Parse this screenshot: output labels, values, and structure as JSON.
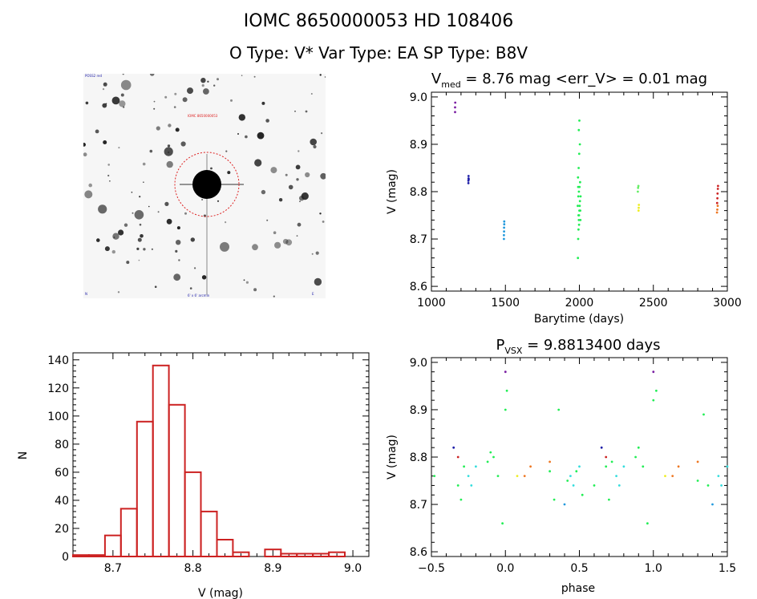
{
  "header": {
    "title": "IOMC 8650000053    HD 108406",
    "subtitle": "O Type: V*  Var Type: EA  SP Type: B8V"
  },
  "finder": {
    "label_center": "IOMC 8650000053",
    "label_top_left": "POSS2 red",
    "label_bottom_left": "N",
    "label_bottom_center": "6' x 6' arcmin",
    "label_bottom_right": "E"
  },
  "chart_data": [
    {
      "type": "scatter",
      "title_main": "V",
      "title_sub": "med",
      "title_rest": " = 8.76 mag <err_V> = 0.01 mag",
      "xlabel": "Barytime (days)",
      "ylabel": "V (mag)",
      "xlim": [
        1000,
        3000
      ],
      "ylim": [
        9.01,
        8.59
      ],
      "xticks": [
        "1000",
        "1500",
        "2000",
        "2500",
        "3000"
      ],
      "yticks": [
        "8.6",
        "8.7",
        "8.8",
        "8.9",
        "9.0"
      ],
      "series": [
        {
          "color": "#7a1fa2",
          "points": [
            [
              1160,
              8.968
            ],
            [
              1160,
              8.978
            ],
            [
              1161,
              8.988
            ]
          ]
        },
        {
          "color": "#1e1ea8",
          "points": [
            [
              1250,
              8.818
            ],
            [
              1250,
              8.823
            ],
            [
              1251,
              8.828
            ],
            [
              1251,
              8.833
            ],
            [
              1252,
              8.826
            ]
          ]
        },
        {
          "color": "#2299dd",
          "points": [
            [
              1490,
              8.7
            ],
            [
              1490,
              8.708
            ],
            [
              1491,
              8.716
            ],
            [
              1491,
              8.724
            ],
            [
              1492,
              8.731
            ],
            [
              1492,
              8.737
            ]
          ]
        },
        {
          "color": "#22ee55",
          "points": [
            [
              1990,
              8.66
            ],
            [
              1992,
              8.7
            ],
            [
              1994,
              8.72
            ],
            [
              1996,
              8.74
            ],
            [
              1998,
              8.75
            ],
            [
              2000,
              8.76
            ],
            [
              2002,
              8.77
            ],
            [
              2004,
              8.78
            ],
            [
              1993,
              8.79
            ],
            [
              1997,
              8.8
            ],
            [
              2001,
              8.81
            ],
            [
              2005,
              8.82
            ],
            [
              1991,
              8.83
            ],
            [
              1995,
              8.85
            ],
            [
              1999,
              8.88
            ],
            [
              2003,
              8.9
            ],
            [
              1996,
              8.93
            ],
            [
              2000,
              8.95
            ],
            [
              1994,
              8.75
            ],
            [
              1998,
              8.73
            ],
            [
              2006,
              8.76
            ],
            [
              1989,
              8.77
            ],
            [
              2008,
              8.79
            ],
            [
              1992,
              8.81
            ],
            [
              2007,
              8.74
            ]
          ]
        },
        {
          "color": "#eeee22",
          "points": [
            [
              2400,
              8.76
            ],
            [
              2401,
              8.766
            ],
            [
              2402,
              8.772
            ]
          ]
        },
        {
          "color": "#66ee66",
          "points": [
            [
              2395,
              8.8
            ],
            [
              2397,
              8.808
            ],
            [
              2399,
              8.812
            ]
          ]
        },
        {
          "color": "#ee7722",
          "points": [
            [
              2930,
              8.756
            ],
            [
              2932,
              8.762
            ],
            [
              2935,
              8.77
            ]
          ]
        },
        {
          "color": "#cc2222",
          "points": [
            [
              2931,
              8.776
            ],
            [
              2933,
              8.786
            ],
            [
              2934,
              8.796
            ],
            [
              2936,
              8.806
            ],
            [
              2937,
              8.812
            ]
          ]
        }
      ]
    },
    {
      "type": "bar",
      "xlabel": "V (mag)",
      "ylabel": "N",
      "xlim": [
        8.65,
        9.02
      ],
      "ylim": [
        0,
        145
      ],
      "xticks": [
        "8.7",
        "8.8",
        "8.9",
        "9.0"
      ],
      "yticks": [
        "0",
        "20",
        "40",
        "60",
        "80",
        "100",
        "120",
        "140"
      ],
      "bin_width": 0.02,
      "bins": [
        8.66,
        8.68,
        8.7,
        8.72,
        8.74,
        8.76,
        8.78,
        8.8,
        8.82,
        8.84,
        8.86,
        8.88,
        8.9,
        8.92,
        8.94,
        8.96,
        8.98
      ],
      "values": [
        1,
        1,
        15,
        34,
        96,
        136,
        108,
        60,
        32,
        12,
        3,
        0,
        5,
        2,
        2,
        2,
        3
      ],
      "color": "#cc2222"
    },
    {
      "type": "scatter",
      "title_main": "P",
      "title_sub": "VSX",
      "title_rest": " = 9.8813400 days",
      "xlabel": "phase",
      "ylabel": "V (mag)",
      "xlim": [
        -0.5,
        1.5
      ],
      "ylim": [
        9.01,
        8.59
      ],
      "xticks": [
        "−0.5",
        "0.0",
        "0.5",
        "1.0",
        "1.5"
      ],
      "yticks": [
        "8.6",
        "8.7",
        "8.8",
        "8.9",
        "9.0"
      ],
      "series": [
        {
          "color": "#22ee55",
          "points": [
            [
              -0.48,
              8.76
            ],
            [
              -0.32,
              8.74
            ],
            [
              -0.3,
              8.71
            ],
            [
              -0.28,
              8.78
            ],
            [
              -0.12,
              8.79
            ],
            [
              -0.1,
              8.81
            ],
            [
              -0.08,
              8.8
            ],
            [
              -0.05,
              8.76
            ],
            [
              -0.02,
              8.66
            ],
            [
              0.0,
              8.9
            ],
            [
              0.01,
              8.94
            ],
            [
              0.3,
              8.77
            ],
            [
              0.33,
              8.71
            ],
            [
              0.36,
              8.9
            ],
            [
              0.42,
              8.75
            ],
            [
              0.48,
              8.77
            ],
            [
              0.52,
              8.72
            ],
            [
              0.6,
              8.74
            ],
            [
              0.68,
              8.78
            ],
            [
              0.7,
              8.71
            ],
            [
              0.72,
              8.79
            ],
            [
              0.88,
              8.8
            ],
            [
              0.9,
              8.82
            ],
            [
              0.93,
              8.78
            ],
            [
              0.96,
              8.66
            ],
            [
              1.0,
              8.92
            ],
            [
              1.02,
              8.94
            ],
            [
              1.3,
              8.75
            ],
            [
              1.34,
              8.89
            ],
            [
              1.37,
              8.74
            ]
          ]
        },
        {
          "color": "#33dddd",
          "points": [
            [
              -0.25,
              8.76
            ],
            [
              -0.23,
              8.74
            ],
            [
              -0.2,
              8.78
            ],
            [
              0.44,
              8.76
            ],
            [
              0.46,
              8.74
            ],
            [
              0.5,
              8.78
            ],
            [
              0.75,
              8.76
            ],
            [
              0.77,
              8.74
            ],
            [
              0.8,
              8.78
            ],
            [
              1.44,
              8.76
            ],
            [
              1.46,
              8.74
            ],
            [
              1.5,
              8.78
            ]
          ]
        },
        {
          "color": "#1e1ea8",
          "points": [
            [
              -0.35,
              8.82
            ],
            [
              0.65,
              8.82
            ]
          ]
        },
        {
          "color": "#2299dd",
          "points": [
            [
              0.4,
              8.7
            ],
            [
              1.4,
              8.7
            ]
          ]
        },
        {
          "color": "#7a1fa2",
          "points": [
            [
              0.0,
              8.98
            ],
            [
              1.0,
              8.98
            ]
          ]
        },
        {
          "color": "#cc2222",
          "points": [
            [
              -0.32,
              8.8
            ],
            [
              0.68,
              8.8
            ]
          ]
        },
        {
          "color": "#ee7722",
          "points": [
            [
              0.13,
              8.76
            ],
            [
              0.17,
              8.78
            ],
            [
              0.3,
              8.79
            ],
            [
              1.13,
              8.76
            ],
            [
              1.17,
              8.78
            ],
            [
              1.3,
              8.79
            ]
          ]
        },
        {
          "color": "#eeee22",
          "points": [
            [
              0.08,
              8.76
            ],
            [
              1.08,
              8.76
            ]
          ]
        }
      ]
    }
  ]
}
